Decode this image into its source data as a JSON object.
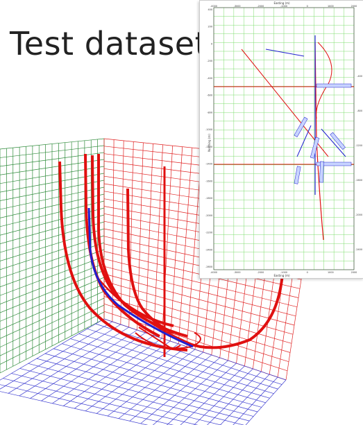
{
  "title": "Test dataset",
  "colors": {
    "grid_left": "#2e8b3a",
    "grid_right": "#e02020",
    "grid_floor": "#3a3ad0",
    "trajectory": "#e01010",
    "reference_trajectory": "#2020d0",
    "inset_grid": "#7cdc6c"
  },
  "inset": {
    "top_axis_label": "Easting (m)",
    "bottom_axis_label": "Easting (m)",
    "left_axis_label": "Northing (m)",
    "x_ticks": [
      "-4000",
      "-3000",
      "-2000",
      "-1000",
      "0",
      "1000",
      "2000"
    ],
    "y_ticks": [
      "400",
      "200",
      "0",
      "-200",
      "-400",
      "-600",
      "-800",
      "-1000",
      "-1200",
      "-1400",
      "-1600",
      "-1800",
      "-2000",
      "-2200",
      "-2400",
      "-2600"
    ],
    "right_ticks": [
      "-400",
      "-800",
      "-1200",
      "-1600",
      "-2000",
      "-2400"
    ]
  }
}
